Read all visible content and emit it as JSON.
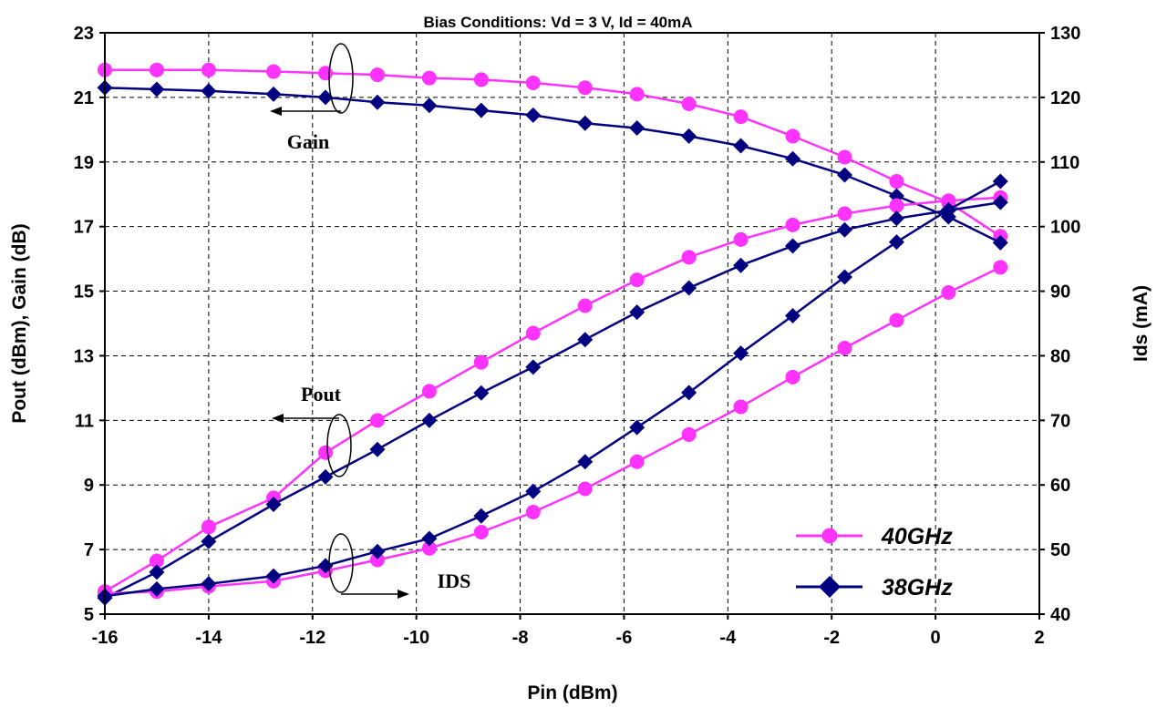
{
  "chart_data": {
    "type": "line",
    "title": "Bias Conditions:  Vd = 3 V, Id = 40mA",
    "xlabel": "Pin (dBm)",
    "ylabel": "Pout (dBm), Gain (dB)",
    "y2label": "Ids (mA)",
    "xlim": [
      -16,
      2
    ],
    "ylim": [
      5,
      23
    ],
    "y2lim": [
      40,
      130
    ],
    "x_ticks": [
      "-16",
      "-14",
      "-12",
      "-10",
      "-8",
      "-6",
      "-4",
      "-2",
      "0",
      "2"
    ],
    "y_ticks": [
      "5",
      "7",
      "9",
      "11",
      "13",
      "15",
      "17",
      "19",
      "21",
      "23"
    ],
    "y2_ticks": [
      "40",
      "50",
      "60",
      "70",
      "80",
      "90",
      "100",
      "110",
      "120",
      "130"
    ],
    "grid": true,
    "legend_position": "bottom-right",
    "annotations": [
      "Gain",
      "Pout",
      "IDS"
    ],
    "legend": [
      {
        "label": "40GHz",
        "color": "#ff33ff",
        "marker": "circle"
      },
      {
        "label": "38GHz",
        "color": "#000080",
        "marker": "diamond"
      }
    ],
    "series": [
      {
        "group": "Gain",
        "freq": "40GHz",
        "axis": "left",
        "color": "#ff33ff",
        "marker": "circle",
        "x": [
          -16,
          -15,
          -14,
          -12.75,
          -11.75,
          -10.75,
          -9.75,
          -8.75,
          -7.75,
          -6.75,
          -5.75,
          -4.75,
          -3.75,
          -2.75,
          -1.75,
          -0.75,
          0.25,
          1.25
        ],
        "values": [
          21.85,
          21.85,
          21.85,
          21.8,
          21.75,
          21.7,
          21.6,
          21.55,
          21.45,
          21.3,
          21.1,
          20.8,
          20.4,
          19.8,
          19.15,
          18.4,
          17.75,
          16.7
        ]
      },
      {
        "group": "Gain",
        "freq": "38GHz",
        "axis": "left",
        "color": "#000080",
        "marker": "diamond",
        "x": [
          -16,
          -15,
          -14,
          -12.75,
          -11.75,
          -10.75,
          -9.75,
          -8.75,
          -7.75,
          -6.75,
          -5.75,
          -4.75,
          -3.75,
          -2.75,
          -1.75,
          -0.75,
          0.25,
          1.25
        ],
        "values": [
          21.3,
          21.25,
          21.2,
          21.1,
          21.0,
          20.85,
          20.75,
          20.6,
          20.45,
          20.2,
          20.05,
          19.8,
          19.5,
          19.1,
          18.6,
          17.95,
          17.3,
          16.5
        ]
      },
      {
        "group": "Pout",
        "freq": "40GHz",
        "axis": "left",
        "color": "#ff33ff",
        "marker": "circle",
        "x": [
          -16,
          -15,
          -14,
          -12.75,
          -11.75,
          -10.75,
          -9.75,
          -8.75,
          -7.75,
          -6.75,
          -5.75,
          -4.75,
          -3.75,
          -2.75,
          -1.75,
          -0.75,
          0.25,
          1.25
        ],
        "values": [
          5.7,
          6.65,
          7.7,
          8.6,
          10.0,
          11.0,
          11.9,
          12.8,
          13.7,
          14.55,
          15.35,
          16.05,
          16.6,
          17.05,
          17.4,
          17.65,
          17.8,
          17.9
        ]
      },
      {
        "group": "Pout",
        "freq": "38GHz",
        "axis": "left",
        "color": "#000080",
        "marker": "diamond",
        "x": [
          -16,
          -15,
          -14,
          -12.75,
          -11.75,
          -10.75,
          -9.75,
          -8.75,
          -7.75,
          -6.75,
          -5.75,
          -4.75,
          -3.75,
          -2.75,
          -1.75,
          -0.75,
          0.25,
          1.25
        ],
        "values": [
          5.5,
          6.3,
          7.25,
          8.4,
          9.25,
          10.1,
          11.0,
          11.85,
          12.65,
          13.5,
          14.35,
          15.1,
          15.8,
          16.4,
          16.9,
          17.25,
          17.5,
          17.75
        ]
      },
      {
        "group": "IDS",
        "freq": "40GHz",
        "axis": "right",
        "color": "#ff33ff",
        "marker": "circle",
        "x": [
          -16,
          -15,
          -14,
          -12.75,
          -11.75,
          -10.75,
          -9.75,
          -8.75,
          -7.75,
          -6.75,
          -5.75,
          -4.75,
          -3.75,
          -2.75,
          -1.75,
          -0.75,
          0.25,
          1.25
        ],
        "values": [
          43.2,
          43.5,
          44.3,
          45.1,
          46.7,
          48.4,
          50.2,
          52.7,
          55.8,
          59.4,
          63.6,
          67.8,
          72.1,
          76.7,
          81.2,
          85.5,
          89.8,
          93.7
        ]
      },
      {
        "group": "IDS",
        "freq": "38GHz",
        "axis": "right",
        "color": "#000080",
        "marker": "diamond",
        "x": [
          -16,
          -15,
          -14,
          -12.75,
          -11.75,
          -10.75,
          -9.75,
          -8.75,
          -7.75,
          -6.75,
          -5.75,
          -4.75,
          -3.75,
          -2.75,
          -1.75,
          -0.75,
          0.25,
          1.25
        ],
        "values": [
          42.8,
          43.9,
          44.7,
          45.9,
          47.5,
          49.7,
          51.7,
          55.2,
          59.0,
          63.6,
          68.9,
          74.3,
          80.4,
          86.2,
          92.2,
          97.6,
          102.6,
          107.0
        ]
      }
    ]
  }
}
